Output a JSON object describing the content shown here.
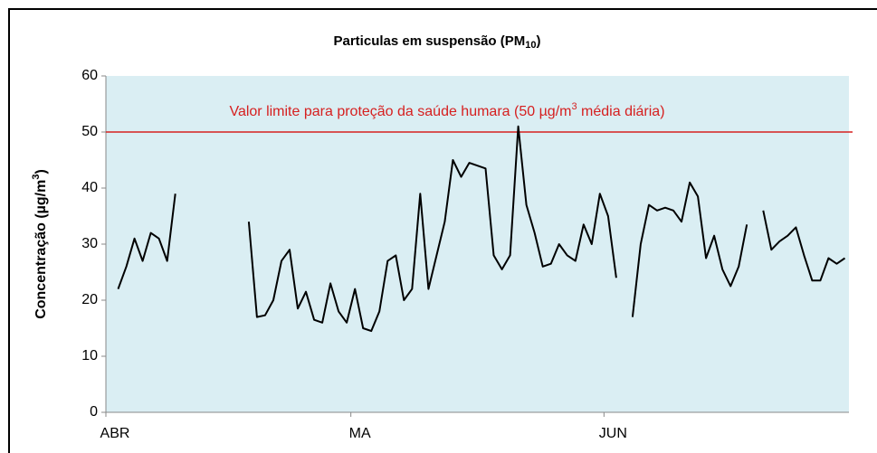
{
  "chart_data": {
    "type": "line",
    "title": [
      "Particulas em suspensão (PM",
      "10",
      ")"
    ],
    "y_label": [
      "Concentração (µg/m",
      "3",
      ")"
    ],
    "categories": [
      "ABR",
      null,
      null,
      null,
      null,
      null,
      null,
      null,
      null,
      null,
      null,
      null,
      null,
      null,
      null,
      null,
      null,
      null,
      null,
      null,
      null,
      null,
      null,
      null,
      null,
      null,
      null,
      null,
      null,
      null,
      "MA",
      null,
      null,
      null,
      null,
      null,
      null,
      null,
      null,
      null,
      null,
      null,
      null,
      null,
      null,
      null,
      null,
      null,
      null,
      null,
      null,
      null,
      null,
      null,
      null,
      null,
      null,
      null,
      null,
      null,
      null,
      "JUN",
      null,
      null,
      null,
      null,
      null,
      null,
      null,
      null,
      null,
      null,
      null,
      null,
      null,
      null,
      null,
      null,
      null,
      null,
      null,
      null,
      null,
      null,
      null,
      null,
      null,
      null,
      null,
      null,
      null
    ],
    "series": [
      {
        "color": "#000000",
        "values": [
          null,
          22,
          26,
          31,
          27,
          32,
          31,
          27,
          39,
          null,
          null,
          null,
          null,
          null,
          null,
          null,
          null,
          34,
          17,
          17.3,
          20,
          27,
          29,
          18.5,
          21.5,
          16.5,
          16,
          23,
          18,
          16,
          22,
          15,
          14.5,
          18,
          27,
          28,
          20,
          22,
          39,
          22,
          28,
          34,
          45,
          42,
          44.5,
          44,
          43.5,
          28,
          25.5,
          28,
          51,
          37,
          32,
          26,
          26.5,
          30,
          28,
          27,
          33.5,
          30,
          39,
          35,
          24,
          null,
          17,
          30,
          37,
          36,
          36.5,
          36,
          34,
          41,
          38.5,
          27.5,
          31.5,
          25.5,
          22.5,
          26,
          33.5,
          null,
          36,
          29,
          30.5,
          31.5,
          33,
          28,
          23.5,
          23.5,
          27.5,
          26.5,
          27.5
        ]
      }
    ],
    "ylim": [
      0,
      60
    ],
    "yticks": [
      0,
      10,
      20,
      30,
      40,
      50,
      60
    ],
    "limit_line": {
      "value": 50,
      "color": "#d62020",
      "label": [
        "Valor limite para proteção da saúde humara  (50 µg/m",
        "3",
        " média diária)"
      ]
    },
    "plot_background": "#daeef3"
  }
}
